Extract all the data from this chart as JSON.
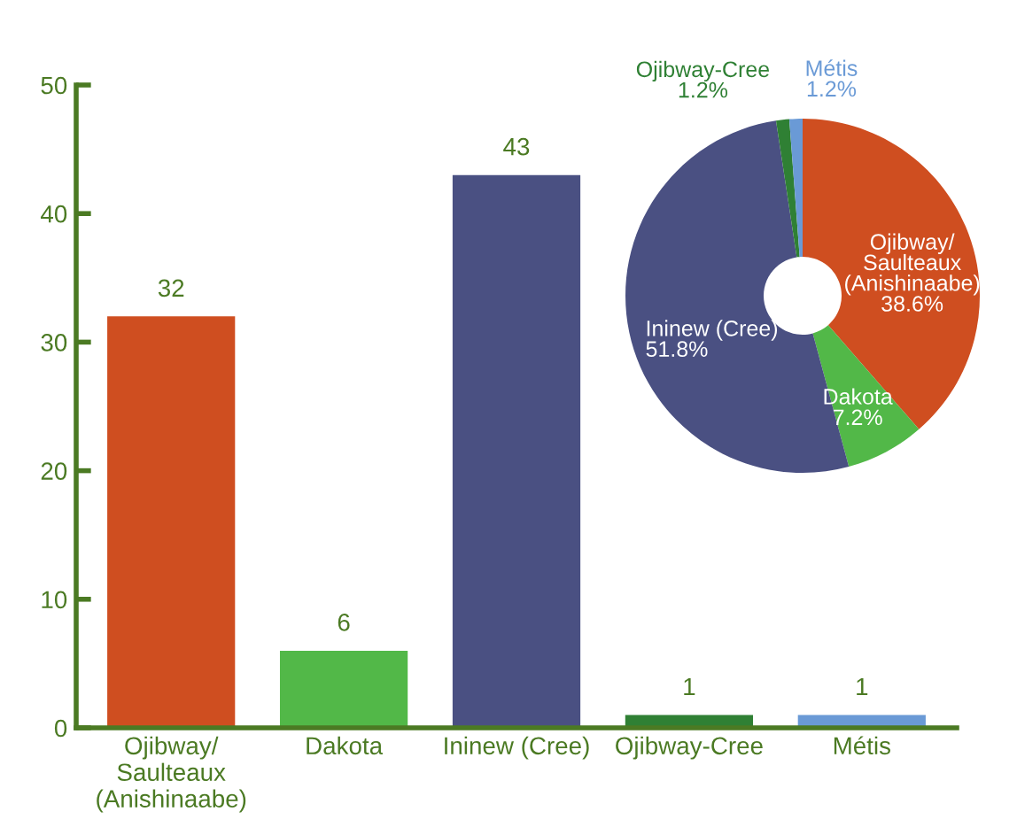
{
  "chart_data": [
    {
      "type": "bar",
      "categories": [
        "Ojibway/\nSaulteaux\n(Anishinaabe)",
        "Dakota",
        "Ininew (Cree)",
        "Ojibway-Cree",
        "Métis"
      ],
      "values": [
        32,
        6,
        43,
        1,
        1
      ],
      "colors": [
        "#cf4e20",
        "#52b848",
        "#4a5082",
        "#2f8034",
        "#6a9ad6"
      ],
      "ylim": [
        0,
        50
      ],
      "yticks": [
        0,
        10,
        20,
        30,
        40,
        50
      ],
      "grid": false,
      "data_labels": true,
      "legend": false
    },
    {
      "type": "donut",
      "categories": [
        "Ojibway/\nSaulteaux\n(Anishinaabe)",
        "Dakota",
        "Ininew (Cree)",
        "Ojibway-Cree",
        "Métis"
      ],
      "values": [
        38.6,
        7.2,
        51.8,
        1.2,
        1.2
      ],
      "colors": [
        "#cf4e20",
        "#52b848",
        "#4a5082",
        "#2f8034",
        "#6a9ad6"
      ],
      "value_labels": [
        "38.6%",
        "7.2%",
        "51.8%",
        "1.2%",
        "1.2%"
      ]
    }
  ]
}
